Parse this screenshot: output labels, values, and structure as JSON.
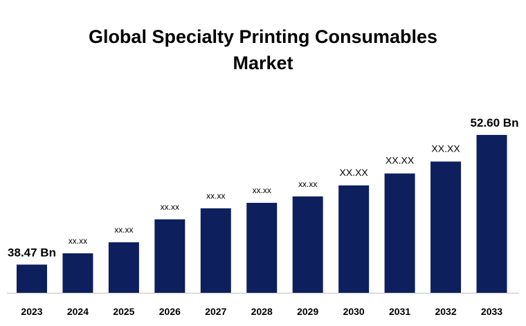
{
  "title_lines": [
    "Global Specialty Printing Consumables",
    "Market"
  ],
  "chart_data": {
    "type": "bar",
    "title": "Global Specialty Printing Consumables Market",
    "categories": [
      "2023",
      "2024",
      "2025",
      "2026",
      "2027",
      "2028",
      "2029",
      "2030",
      "2031",
      "2032",
      "2033"
    ],
    "values": [
      38.47,
      39.7,
      40.9,
      43.4,
      44.6,
      45.2,
      45.9,
      47.1,
      48.4,
      49.7,
      52.6
    ],
    "data_labels": [
      "38.47 Bn",
      "xx.xx",
      "xx.xx",
      "xx.xx",
      "xx.xx",
      "xx.xx",
      "xx.xx",
      "XX.XX",
      "XX.XX",
      "XX.XX",
      "52.60 Bn"
    ],
    "xlabel": "",
    "ylabel": "",
    "ylim": [
      35.4,
      53.5
    ],
    "grid": false,
    "bar_color": "#0d1f5c"
  }
}
